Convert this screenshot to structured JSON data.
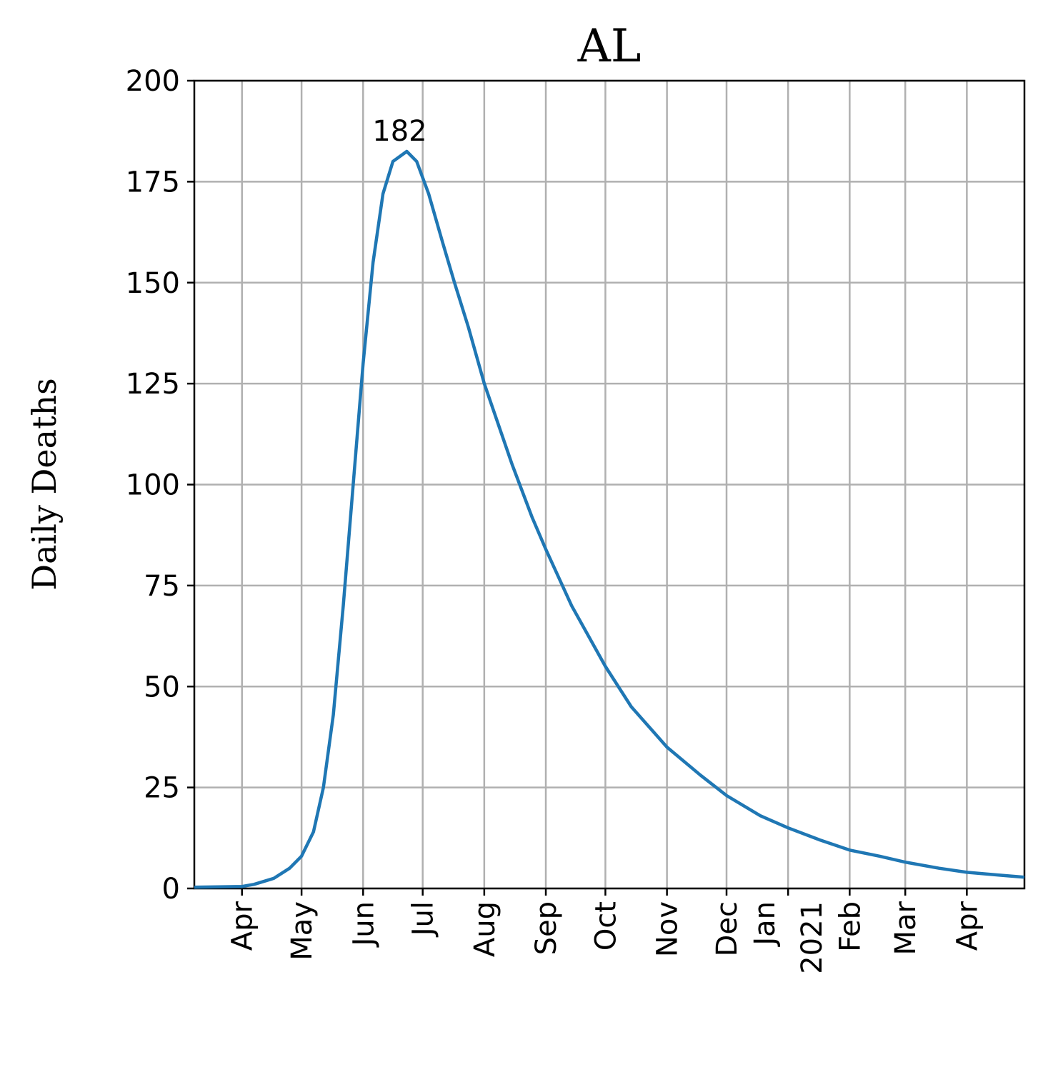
{
  "chart_data": {
    "type": "line",
    "title": "AL",
    "y_label": "Daily Deaths",
    "x": [
      0,
      24,
      30,
      40,
      48,
      54,
      60,
      65,
      70,
      75,
      80,
      85,
      90,
      95,
      100,
      107,
      112,
      118,
      125,
      131,
      138,
      146,
      160,
      170,
      177,
      190,
      207,
      220,
      238,
      255,
      268,
      285,
      299,
      315,
      330,
      345,
      358,
      375,
      389,
      405,
      418
    ],
    "series": [
      {
        "name": "AL",
        "color": "#1f77b4",
        "values": [
          0.3,
          0.5,
          1,
          2.5,
          5,
          8,
          14,
          25,
          43,
          70,
          100,
          130,
          155,
          172,
          180,
          182.5,
          180,
          172,
          160,
          150,
          139,
          125,
          105,
          92,
          84,
          70,
          55,
          45,
          35,
          28,
          23,
          18,
          15,
          12,
          9.5,
          8,
          6.5,
          5,
          4,
          3.3,
          2.8
        ]
      }
    ],
    "annotations": [
      {
        "label": "182",
        "x": 107,
        "y": 182
      }
    ],
    "xlim": [
      0,
      418
    ],
    "xticks": [
      {
        "value": 24,
        "label": "Apr"
      },
      {
        "value": 54,
        "label": "May"
      },
      {
        "value": 85,
        "label": "Jun"
      },
      {
        "value": 115,
        "label": "Jul"
      },
      {
        "value": 146,
        "label": "Aug"
      },
      {
        "value": 177,
        "label": "Sep"
      },
      {
        "value": 207,
        "label": "Oct"
      },
      {
        "value": 238,
        "label": "Nov"
      },
      {
        "value": 268,
        "label": "Dec"
      },
      {
        "value": 299,
        "label": "Jan\n2021"
      },
      {
        "value": 330,
        "label": "Feb"
      },
      {
        "value": 358,
        "label": "Mar"
      },
      {
        "value": 389,
        "label": "Apr"
      }
    ],
    "ylim": [
      0,
      200
    ],
    "yticks": [
      0,
      25,
      50,
      75,
      100,
      125,
      150,
      175,
      200
    ],
    "grid": true
  }
}
